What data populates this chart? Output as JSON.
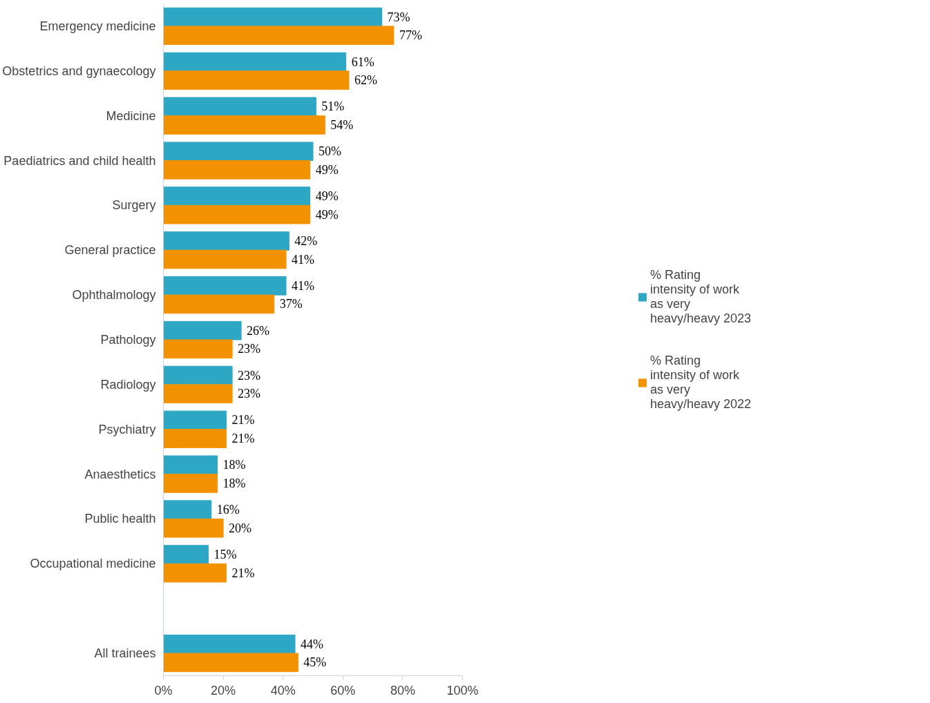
{
  "chart_data": {
    "type": "bar",
    "orientation": "horizontal",
    "categories": [
      "Emergency medicine",
      "Obstetrics and gynaecology",
      "Medicine",
      "Paediatrics and child health",
      "Surgery",
      "General practice",
      "Ophthalmology",
      "Pathology",
      "Radiology",
      "Psychiatry",
      "Anaesthetics",
      "Public health",
      "Occupational medicine",
      null,
      "All trainees"
    ],
    "series": [
      {
        "name": "% Rating intensity of work as very heavy/heavy 2023",
        "color": "#2ea7c5",
        "values": [
          73,
          61,
          51,
          50,
          49,
          42,
          41,
          26,
          23,
          21,
          18,
          16,
          15,
          null,
          44
        ],
        "value_labels": [
          "73%",
          "61%",
          "51%",
          "50%",
          "49%",
          "42%",
          "41%",
          "26%",
          "23%",
          "21%",
          "18%",
          "16%",
          "15%",
          null,
          "44%"
        ]
      },
      {
        "name": "% Rating intensity of work as very heavy/heavy 2022",
        "color": "#f39200",
        "values": [
          77,
          62,
          54,
          49,
          49,
          41,
          37,
          23,
          23,
          21,
          18,
          20,
          21,
          null,
          45
        ],
        "value_labels": [
          "77%",
          "62%",
          "54%",
          "49%",
          "49%",
          "41%",
          "37%",
          "23%",
          "23%",
          "21%",
          "18%",
          "20%",
          "21%",
          null,
          "45%"
        ]
      }
    ],
    "xlim": [
      0,
      100
    ],
    "xticks": [
      {
        "value": 0,
        "label": "0%"
      },
      {
        "value": 20,
        "label": "20%"
      },
      {
        "value": 40,
        "label": "40%"
      },
      {
        "value": 60,
        "label": "60%"
      },
      {
        "value": 80,
        "label": "80%"
      },
      {
        "value": 100,
        "label": "100%"
      }
    ],
    "legend": "right",
    "grid": false
  }
}
